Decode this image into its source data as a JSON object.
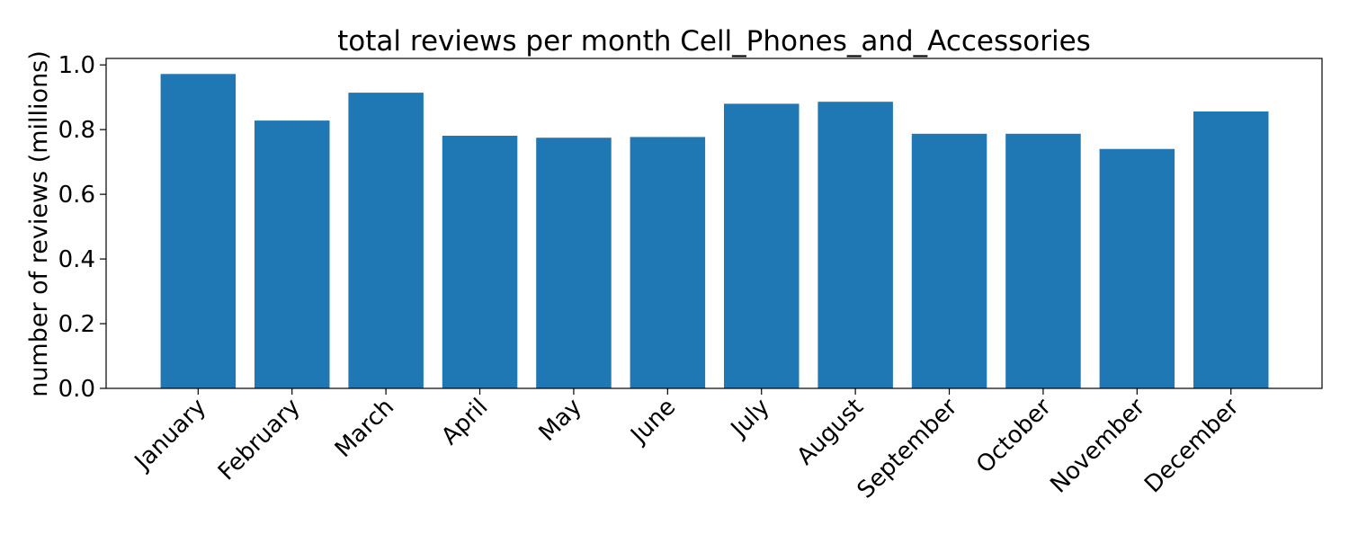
{
  "chart_data": {
    "type": "bar",
    "title": "total reviews per month Cell_Phones_and_Accessories",
    "xlabel": "",
    "ylabel": "number of reviews (millions)",
    "categories": [
      "January",
      "February",
      "March",
      "April",
      "May",
      "June",
      "July",
      "August",
      "September",
      "October",
      "November",
      "December"
    ],
    "values": [
      0.972,
      0.828,
      0.914,
      0.781,
      0.775,
      0.777,
      0.88,
      0.886,
      0.787,
      0.787,
      0.74,
      0.856
    ],
    "ylim": [
      0,
      1.02
    ],
    "yticks": [
      0.0,
      0.2,
      0.4,
      0.6,
      0.8,
      1.0
    ],
    "ytick_labels": [
      "0.0",
      "0.2",
      "0.4",
      "0.6",
      "0.8",
      "1.0"
    ],
    "bar_color": "#1f77b4",
    "grid": false,
    "legend": "none"
  }
}
